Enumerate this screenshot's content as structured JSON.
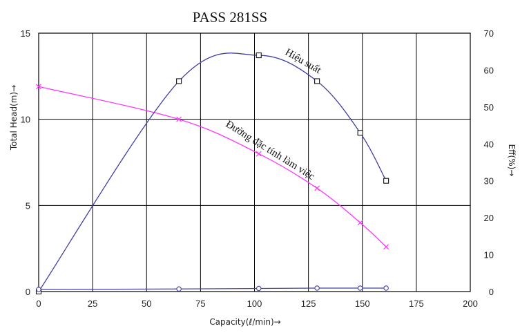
{
  "chart_data": {
    "type": "line",
    "title": "PASS 281SS",
    "xlabel": "Capacity(ℓ/min)→",
    "ylabel_left": "Total Head(m)→",
    "ylabel_right": "Eff(%)→",
    "xlim": [
      0,
      200
    ],
    "ylim_left": [
      0,
      15
    ],
    "ylim_right": [
      0,
      70
    ],
    "x_ticks": [
      0,
      25,
      50,
      75,
      100,
      125,
      150,
      175,
      200
    ],
    "y_left_ticks": [
      0,
      5,
      10,
      15
    ],
    "y_right_ticks": [
      0,
      10,
      20,
      30,
      40,
      50,
      60,
      70
    ],
    "grid": true,
    "series": [
      {
        "name": "Đường đặc tính làm việc",
        "axis": "left",
        "color": "#ff33ff",
        "marker": "x",
        "x": [
          0,
          65,
          102,
          129,
          149,
          161
        ],
        "y": [
          11.9,
          10.0,
          8.0,
          6.0,
          4.0,
          2.6
        ]
      },
      {
        "name": "Hiệu suất",
        "axis": "right",
        "color": "#4040a0",
        "marker": "square",
        "x": [
          0,
          65,
          102,
          129,
          149,
          161
        ],
        "y": [
          0,
          57,
          64,
          57,
          43,
          30
        ]
      },
      {
        "axis": "left",
        "color": "#4040a0",
        "marker": "circle",
        "x": [
          0,
          65,
          102,
          129,
          149,
          161
        ],
        "y": [
          0.12,
          0.15,
          0.18,
          0.2,
          0.2,
          0.2
        ]
      }
    ],
    "annotations": [
      {
        "text": "Hiệu suất",
        "series": 1
      },
      {
        "text": "Đường đặc tính làm việc",
        "series": 0
      }
    ]
  }
}
